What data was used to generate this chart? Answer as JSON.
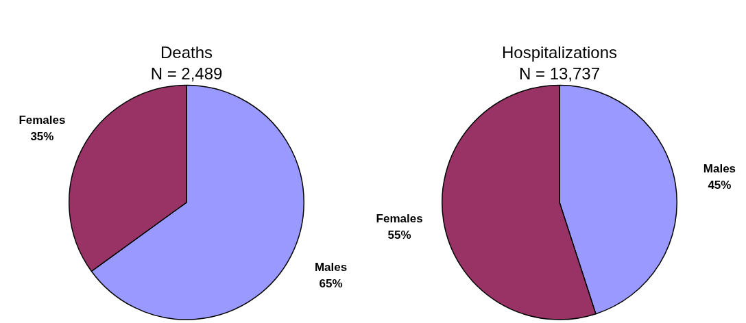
{
  "chart_data": [
    {
      "type": "pie",
      "title": "Deaths",
      "subtitle": "N = 2,489",
      "categories": [
        "Males",
        "Females"
      ],
      "values": [
        65,
        35
      ],
      "colors": [
        "#9999ff",
        "#993366"
      ],
      "value_labels": [
        "65%",
        "35%"
      ]
    },
    {
      "type": "pie",
      "title": "Hospitalizations",
      "subtitle": "N = 13,737",
      "categories": [
        "Males",
        "Females"
      ],
      "values": [
        45,
        55
      ],
      "colors": [
        "#9999ff",
        "#993366"
      ],
      "value_labels": [
        "45%",
        "55%"
      ]
    }
  ]
}
